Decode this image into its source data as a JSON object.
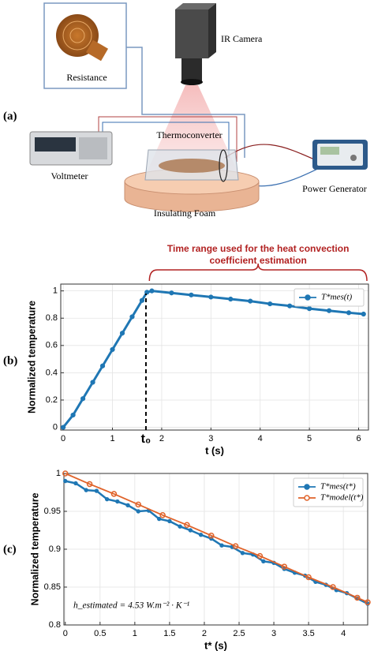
{
  "diagram": {
    "label": "(a)",
    "nodes": [
      {
        "label": "Resistance"
      },
      {
        "label": "IR Camera"
      },
      {
        "label": "Thermoconverter"
      },
      {
        "label": "Voltmeter"
      },
      {
        "label": "Power Generator"
      },
      {
        "label": "Insulating Foam"
      }
    ]
  },
  "chart_data": [
    {
      "type": "line",
      "label": "(b)",
      "xlabel": "t (s)",
      "ylabel": "Normalized temperature",
      "x": [
        0,
        0.2,
        0.4,
        0.6,
        0.8,
        1.0,
        1.2,
        1.4,
        1.6,
        1.7,
        1.8,
        2.2,
        2.6,
        3.0,
        3.4,
        3.8,
        4.2,
        4.6,
        5.0,
        5.4,
        5.8,
        6.1
      ],
      "series": [
        {
          "name": "T*mes(t)",
          "color": "#1f77b4",
          "values": [
            0,
            0.09,
            0.21,
            0.33,
            0.45,
            0.57,
            0.69,
            0.81,
            0.93,
            0.99,
            1.0,
            0.985,
            0.97,
            0.955,
            0.94,
            0.925,
            0.905,
            0.89,
            0.87,
            0.855,
            0.84,
            0.83
          ]
        }
      ],
      "xlim": [
        -0.05,
        6.2
      ],
      "ylim": [
        -0.02,
        1.05
      ],
      "xticks": [
        0,
        1,
        2,
        3,
        4,
        5,
        6
      ],
      "yticks": [
        0,
        0.2,
        0.4,
        0.6,
        0.8,
        1
      ],
      "grid": true,
      "legend": "upper right",
      "annotations": [
        {
          "text": "t₀",
          "x": 1.68,
          "y": 0.98
        }
      ],
      "range_annotation": {
        "text": [
          "Time range used for the heat convection",
          "coefficient estimation"
        ],
        "xlim": [
          1.75,
          6.2
        ],
        "color": "#b22222"
      }
    },
    {
      "type": "line",
      "label": "(c)",
      "xlabel": "t* (s)",
      "ylabel": "Normalized temperature",
      "series": [
        {
          "name": "T*mes(t*)",
          "color": "#1f77b4",
          "x": [
            0,
            0.15,
            0.3,
            0.45,
            0.6,
            0.75,
            0.9,
            1.05,
            1.2,
            1.35,
            1.5,
            1.65,
            1.8,
            1.95,
            2.1,
            2.25,
            2.4,
            2.55,
            2.7,
            2.85,
            3.0,
            3.15,
            3.3,
            3.45,
            3.6,
            3.75,
            3.9,
            4.05,
            4.2,
            4.35
          ],
          "values": [
            0.99,
            0.987,
            0.978,
            0.977,
            0.966,
            0.963,
            0.958,
            0.95,
            0.951,
            0.94,
            0.937,
            0.93,
            0.925,
            0.919,
            0.914,
            0.905,
            0.903,
            0.895,
            0.893,
            0.884,
            0.882,
            0.874,
            0.869,
            0.865,
            0.857,
            0.853,
            0.846,
            0.842,
            0.835,
            0.828
          ]
        },
        {
          "name": "T*model(t*)",
          "color": "#e0632a",
          "x": [
            0,
            0.35,
            0.7,
            1.05,
            1.4,
            1.75,
            2.1,
            2.45,
            2.8,
            3.15,
            3.5,
            3.85,
            4.2,
            4.35
          ],
          "values": [
            1.0,
            0.986,
            0.973,
            0.959,
            0.945,
            0.932,
            0.918,
            0.904,
            0.891,
            0.877,
            0.863,
            0.85,
            0.836,
            0.83
          ]
        }
      ],
      "xlim": [
        -0.02,
        4.35
      ],
      "ylim": [
        0.8,
        1.0
      ],
      "xticks": [
        0,
        0.5,
        1,
        1.5,
        2,
        2.5,
        3,
        3.5,
        4
      ],
      "yticks": [
        0.8,
        0.85,
        0.9,
        0.95,
        1
      ],
      "grid": true,
      "legend": "upper right",
      "text_annotation": "h_estimated = 4.53   W.m⁻² · K⁻¹"
    }
  ]
}
